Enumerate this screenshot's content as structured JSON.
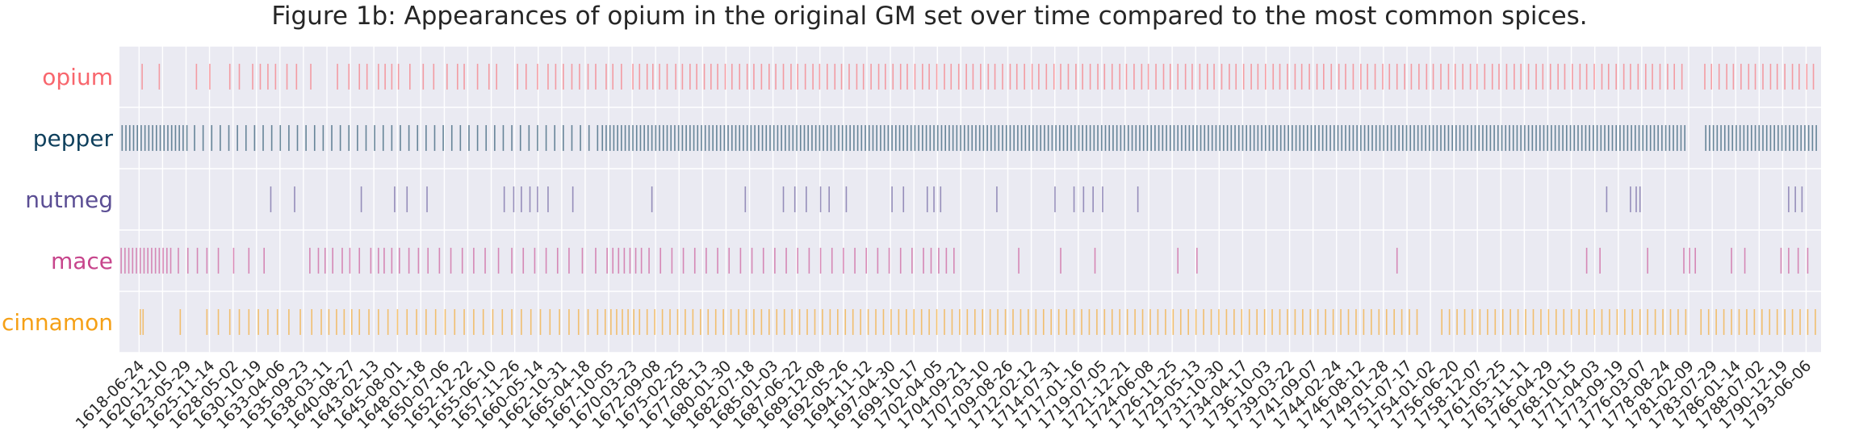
{
  "chart_data": {
    "type": "event-strip",
    "title": "Figure 1b: Appearances of opium in the original GM set over time compared to the most common spices.",
    "xlabel": "",
    "ylabel": "",
    "grid": true,
    "xlim": [
      "1616-06-01",
      "1794-12-31"
    ],
    "x_tick_labels": [
      "1618-06-24",
      "1620-12-10",
      "1623-05-29",
      "1625-11-14",
      "1628-05-02",
      "1630-10-19",
      "1633-04-06",
      "1635-09-23",
      "1638-03-11",
      "1640-08-27",
      "1643-02-13",
      "1645-08-01",
      "1648-01-18",
      "1650-07-06",
      "1652-12-22",
      "1655-06-10",
      "1657-11-26",
      "1660-05-14",
      "1662-10-31",
      "1665-04-18",
      "1667-10-05",
      "1670-03-23",
      "1672-09-08",
      "1675-02-25",
      "1677-08-13",
      "1680-01-30",
      "1682-07-18",
      "1685-01-03",
      "1687-06-22",
      "1689-12-08",
      "1692-05-26",
      "1694-11-12",
      "1697-04-30",
      "1699-10-17",
      "1702-04-05",
      "1704-09-21",
      "1707-03-10",
      "1709-08-26",
      "1712-02-12",
      "1714-07-31",
      "1717-01-16",
      "1719-07-05",
      "1721-12-21",
      "1724-06-08",
      "1726-11-25",
      "1729-05-13",
      "1731-10-30",
      "1734-04-17",
      "1736-10-03",
      "1739-03-22",
      "1741-09-07",
      "1744-02-24",
      "1746-08-12",
      "1749-01-28",
      "1751-07-17",
      "1754-01-02",
      "1756-06-20",
      "1758-12-07",
      "1761-05-25",
      "1763-11-11",
      "1766-04-29",
      "1768-10-15",
      "1771-04-03",
      "1773-09-19",
      "1776-03-07",
      "1778-08-24",
      "1781-02-09",
      "1783-07-29",
      "1786-01-14",
      "1788-07-02",
      "1790-12-19",
      "1793-06-06"
    ],
    "series": [
      {
        "name": "opium",
        "color": "#f8666d",
        "years": [
          1618.8,
          1620.6,
          1624.5,
          1625.9,
          1628.0,
          1629.0,
          1630.4,
          1631.2,
          1632.0,
          1632.8,
          1634.0,
          1635.0,
          1636.5,
          1639.3,
          1640.5,
          1641.6,
          1642.4,
          1643.6,
          1644.3,
          1645.0,
          1645.7,
          1646.9,
          1648.3,
          1649.4,
          1650.8,
          1651.9,
          1652.6,
          1654.0,
          1655.2,
          1656.0,
          1658.2,
          1659.1,
          1660.3,
          1661.4,
          1662.2,
          1663.0,
          1663.9,
          1664.7,
          1665.6,
          1666.4,
          1667.5,
          1668.2,
          1669.1,
          1670.3,
          1671.0,
          1671.8,
          1672.4,
          1673.1,
          1673.9,
          1674.8,
          1675.5,
          1676.3,
          1677.0,
          1677.8,
          1678.5,
          1679.2,
          1680.0,
          1680.7,
          1681.5,
          1682.3,
          1683.0,
          1683.8,
          1684.6,
          1685.3,
          1686.1,
          1686.9,
          1687.6,
          1688.4,
          1689.2,
          1689.9,
          1690.7,
          1691.5,
          1692.2,
          1693.0,
          1693.8,
          1694.5,
          1695.3,
          1696.1,
          1696.8,
          1697.6,
          1698.4,
          1699.1,
          1699.9,
          1700.7,
          1701.4,
          1702.2,
          1703.0,
          1703.7,
          1704.5,
          1705.3,
          1706.0,
          1706.8,
          1707.6,
          1708.3,
          1709.1,
          1709.9,
          1710.6,
          1711.4,
          1712.2,
          1712.9,
          1713.7,
          1714.5,
          1715.2,
          1716.0,
          1716.8,
          1717.5,
          1718.3,
          1719.1,
          1719.8,
          1720.6,
          1721.4,
          1722.1,
          1722.9,
          1723.7,
          1724.4,
          1725.2,
          1726.0,
          1726.7,
          1727.5,
          1728.3,
          1729.0,
          1729.8,
          1730.6,
          1731.3,
          1732.1,
          1732.9,
          1733.6,
          1734.4,
          1735.2,
          1735.9,
          1736.7,
          1737.5,
          1738.2,
          1739.0,
          1739.8,
          1740.5,
          1741.3,
          1742.1,
          1742.8,
          1743.6,
          1744.4,
          1745.1,
          1745.9,
          1746.7,
          1747.4,
          1748.2,
          1749.0,
          1749.7,
          1750.5,
          1751.3,
          1752.0,
          1752.8,
          1753.6,
          1754.3,
          1755.1,
          1755.9,
          1756.6,
          1757.4,
          1758.2,
          1758.9,
          1759.7,
          1760.5,
          1761.2,
          1762.0,
          1762.8,
          1763.5,
          1764.3,
          1765.1,
          1765.8,
          1766.6,
          1767.4,
          1768.1,
          1768.9,
          1769.7,
          1770.4,
          1771.2,
          1772.0,
          1772.7,
          1773.5,
          1774.3,
          1775.0,
          1775.8,
          1776.6,
          1777.3,
          1778.1,
          1778.9,
          1779.6,
          1780.4,
          1782.8,
          1783.5,
          1784.3,
          1785.1,
          1785.8,
          1786.6,
          1787.4,
          1788.1,
          1788.9,
          1789.7,
          1790.4,
          1791.2,
          1792.0,
          1792.7,
          1793.5,
          1794.2
        ]
      },
      {
        "name": "pepper",
        "color": "#0e3f5c",
        "years": [
          1616.7,
          1617.1,
          1617.5,
          1617.9,
          1618.3,
          1618.7,
          1619.1,
          1619.5,
          1619.9,
          1620.3,
          1620.7,
          1621.1,
          1621.5,
          1621.9,
          1622.3,
          1622.7,
          1623.1,
          1623.5,
          1624.3,
          1625.2,
          1626.1,
          1627.0,
          1627.9,
          1628.8,
          1629.7,
          1630.6,
          1631.5,
          1632.4,
          1633.3,
          1634.2,
          1635.1,
          1636.0,
          1636.9,
          1637.8,
          1638.7,
          1639.6,
          1640.5,
          1641.4,
          1642.3,
          1643.2,
          1644.1,
          1645.0,
          1645.9,
          1646.8,
          1647.7,
          1648.6,
          1649.5,
          1650.4,
          1651.3,
          1652.2,
          1653.1,
          1654.0,
          1654.9,
          1655.8,
          1656.7,
          1657.6,
          1658.5,
          1659.4,
          1660.3,
          1661.2,
          1662.1,
          1663.0,
          1663.9,
          1664.8,
          1665.7,
          1666.6,
          1667.1,
          1667.5,
          1667.9,
          1668.3,
          1668.7,
          1669.1,
          1669.5,
          1669.9,
          1670.3,
          1670.7,
          1671.1,
          1671.5,
          1671.9,
          1672.3,
          1672.7,
          1673.1,
          1673.5,
          1673.9,
          1674.3,
          1674.7,
          1675.1,
          1675.5,
          1675.9,
          1676.3,
          1676.7,
          1677.1,
          1677.5,
          1677.9,
          1678.3,
          1678.7,
          1679.1,
          1679.5,
          1679.9,
          1680.3,
          1680.7,
          1681.1,
          1681.5,
          1681.9,
          1682.3,
          1682.7,
          1683.1,
          1683.5,
          1683.9,
          1684.3,
          1684.7,
          1685.1,
          1685.5,
          1685.9,
          1686.3,
          1686.7,
          1687.1,
          1687.5,
          1687.9,
          1688.3,
          1688.7,
          1689.1,
          1689.5,
          1689.9,
          1690.3,
          1690.7,
          1691.1,
          1691.5,
          1691.9,
          1692.3,
          1692.7,
          1693.1,
          1693.5,
          1693.9,
          1694.3,
          1694.7,
          1695.1,
          1695.5,
          1695.9,
          1696.3,
          1696.7,
          1697.1,
          1697.5,
          1697.9,
          1698.3,
          1698.7,
          1699.1,
          1699.5,
          1699.9,
          1700.3,
          1700.7,
          1701.1,
          1701.5,
          1701.9,
          1702.3,
          1702.7,
          1703.1,
          1703.5,
          1703.9,
          1704.3,
          1704.7,
          1705.1,
          1705.5,
          1705.9,
          1706.3,
          1706.7,
          1707.1,
          1707.5,
          1707.9,
          1708.3,
          1708.7,
          1709.1,
          1709.5,
          1709.9,
          1710.3,
          1710.7,
          1711.1,
          1711.5,
          1711.9,
          1712.3,
          1712.7,
          1713.1,
          1713.5,
          1713.9,
          1714.3,
          1714.7,
          1715.1,
          1715.5,
          1715.9,
          1716.3,
          1716.7,
          1717.1,
          1717.5,
          1717.9,
          1718.3,
          1718.7,
          1719.1,
          1719.5,
          1719.9,
          1720.3,
          1720.7,
          1721.1,
          1721.5,
          1721.9,
          1722.3,
          1722.7,
          1723.1,
          1723.5,
          1723.9,
          1724.3,
          1724.7,
          1725.1,
          1725.5,
          1725.9,
          1726.3,
          1726.7,
          1727.1,
          1727.5,
          1727.9,
          1728.3,
          1728.7,
          1729.1,
          1729.5,
          1729.9,
          1730.3,
          1730.7,
          1731.1,
          1731.5,
          1731.9,
          1732.3,
          1732.7,
          1733.1,
          1733.5,
          1733.9,
          1734.3,
          1734.7,
          1735.1,
          1735.5,
          1735.9,
          1736.3,
          1736.7,
          1737.1,
          1737.5,
          1737.9,
          1738.3,
          1738.7,
          1739.1,
          1739.5,
          1739.9,
          1740.3,
          1740.7,
          1741.1,
          1741.5,
          1741.9,
          1742.3,
          1742.7,
          1743.1,
          1743.5,
          1743.9,
          1744.3,
          1744.7,
          1745.1,
          1745.5,
          1745.9,
          1746.3,
          1746.7,
          1747.1,
          1747.5,
          1747.9,
          1748.3,
          1748.7,
          1749.1,
          1749.5,
          1749.9,
          1750.3,
          1750.7,
          1751.1,
          1751.5,
          1751.9,
          1752.3,
          1752.7,
          1753.1,
          1753.5,
          1753.9,
          1754.3,
          1754.7,
          1755.1,
          1755.5,
          1755.9,
          1756.3,
          1756.7,
          1757.1,
          1757.5,
          1757.9,
          1758.3,
          1758.7,
          1759.1,
          1759.5,
          1759.9,
          1760.3,
          1760.7,
          1761.1,
          1761.5,
          1761.9,
          1762.3,
          1762.7,
          1763.1,
          1763.5,
          1763.9,
          1764.3,
          1764.7,
          1765.1,
          1765.5,
          1765.9,
          1766.3,
          1766.7,
          1767.1,
          1767.5,
          1767.9,
          1768.3,
          1768.7,
          1769.1,
          1769.5,
          1769.9,
          1770.3,
          1770.7,
          1771.1,
          1771.5,
          1771.9,
          1772.3,
          1772.7,
          1773.1,
          1773.5,
          1773.9,
          1774.3,
          1774.7,
          1775.1,
          1775.5,
          1775.9,
          1776.3,
          1776.7,
          1777.1,
          1777.5,
          1777.9,
          1778.3,
          1778.7,
          1779.1,
          1779.5,
          1779.9,
          1780.3,
          1780.7,
          1782.9,
          1783.3,
          1783.7,
          1784.1,
          1784.5,
          1784.9,
          1785.3,
          1785.7,
          1786.1,
          1786.5,
          1786.9,
          1787.3,
          1787.7,
          1788.1,
          1788.5,
          1788.9,
          1789.3,
          1789.7,
          1790.1,
          1790.5,
          1790.9,
          1791.3,
          1791.7,
          1792.1,
          1792.5,
          1792.9,
          1793.3,
          1793.7,
          1794.1,
          1794.5
        ]
      },
      {
        "name": "nutmeg",
        "color": "#5b4e94",
        "years": [
          1632.3,
          1634.8,
          1641.8,
          1645.3,
          1646.6,
          1648.7,
          1656.8,
          1657.8,
          1658.6,
          1659.5,
          1660.3,
          1661.4,
          1664.0,
          1672.3,
          1682.1,
          1686.1,
          1687.3,
          1688.5,
          1690.0,
          1690.9,
          1692.7,
          1697.5,
          1698.7,
          1701.2,
          1701.9,
          1702.6,
          1708.5,
          1714.6,
          1716.6,
          1717.6,
          1718.6,
          1719.6,
          1723.3,
          1772.5,
          1775.0,
          1775.6,
          1776.0,
          1791.6,
          1792.3,
          1793.0
        ]
      },
      {
        "name": "mace",
        "color": "#c7458c",
        "years": [
          1616.6,
          1617.0,
          1617.4,
          1617.8,
          1618.2,
          1618.6,
          1619.0,
          1619.4,
          1619.8,
          1620.2,
          1620.6,
          1621.0,
          1621.4,
          1621.8,
          1622.6,
          1623.6,
          1624.6,
          1625.6,
          1626.8,
          1628.4,
          1630.0,
          1631.6,
          1636.4,
          1637.3,
          1638.0,
          1638.8,
          1639.8,
          1640.6,
          1641.6,
          1642.8,
          1643.6,
          1644.2,
          1645.0,
          1645.8,
          1646.8,
          1647.8,
          1648.8,
          1650.0,
          1651.2,
          1652.4,
          1653.6,
          1654.8,
          1656.2,
          1657.6,
          1658.8,
          1660.0,
          1661.2,
          1662.4,
          1663.6,
          1665.0,
          1666.4,
          1667.6,
          1668.2,
          1668.8,
          1669.4,
          1670.0,
          1670.6,
          1671.2,
          1672.0,
          1673.2,
          1674.4,
          1675.6,
          1676.8,
          1678.0,
          1679.2,
          1680.4,
          1681.6,
          1682.8,
          1684.0,
          1685.2,
          1686.4,
          1687.6,
          1688.8,
          1690.0,
          1691.2,
          1692.4,
          1693.6,
          1694.8,
          1696.0,
          1697.2,
          1698.4,
          1699.6,
          1700.8,
          1701.6,
          1702.4,
          1703.2,
          1704.0,
          1710.8,
          1715.2,
          1718.8,
          1727.5,
          1729.5,
          1750.5,
          1770.4,
          1771.8,
          1776.8,
          1780.6,
          1781.2,
          1781.8,
          1785.6,
          1787.0,
          1790.8,
          1791.6,
          1792.6,
          1793.6
        ]
      },
      {
        "name": "cinnamon",
        "color": "#f5a016",
        "years": [
          1618.6,
          1618.9,
          1622.8,
          1625.6,
          1626.8,
          1628.0,
          1629.0,
          1630.0,
          1631.0,
          1632.0,
          1633.0,
          1634.2,
          1635.4,
          1636.6,
          1637.6,
          1638.4,
          1639.2,
          1640.0,
          1640.8,
          1641.6,
          1642.6,
          1643.6,
          1644.6,
          1645.6,
          1646.6,
          1647.6,
          1648.6,
          1649.6,
          1650.6,
          1651.6,
          1652.6,
          1653.6,
          1654.6,
          1655.6,
          1656.6,
          1657.6,
          1658.6,
          1659.6,
          1660.6,
          1661.6,
          1662.6,
          1663.6,
          1664.6,
          1665.6,
          1666.6,
          1667.4,
          1668.0,
          1668.6,
          1669.2,
          1669.8,
          1670.4,
          1671.0,
          1671.8,
          1672.6,
          1673.4,
          1674.2,
          1675.0,
          1675.8,
          1676.6,
          1677.4,
          1678.2,
          1679.0,
          1679.8,
          1680.6,
          1681.4,
          1682.2,
          1683.0,
          1683.8,
          1684.6,
          1685.4,
          1686.2,
          1687.0,
          1687.8,
          1688.6,
          1689.4,
          1690.2,
          1691.0,
          1691.8,
          1692.6,
          1693.4,
          1694.2,
          1695.0,
          1695.8,
          1696.6,
          1697.4,
          1698.2,
          1699.0,
          1699.8,
          1700.6,
          1701.4,
          1702.2,
          1703.0,
          1703.8,
          1704.6,
          1705.4,
          1706.2,
          1707.0,
          1707.8,
          1708.6,
          1709.4,
          1710.2,
          1711.0,
          1711.8,
          1712.6,
          1713.4,
          1714.2,
          1715.0,
          1715.8,
          1716.6,
          1717.4,
          1718.2,
          1719.0,
          1719.8,
          1720.6,
          1721.4,
          1722.2,
          1723.0,
          1723.8,
          1724.6,
          1725.4,
          1726.2,
          1727.0,
          1727.8,
          1728.6,
          1729.4,
          1730.2,
          1731.0,
          1731.8,
          1732.6,
          1733.4,
          1734.2,
          1735.0,
          1735.8,
          1736.6,
          1737.4,
          1738.2,
          1739.0,
          1739.8,
          1740.6,
          1741.4,
          1742.2,
          1743.0,
          1743.8,
          1744.6,
          1745.4,
          1746.2,
          1747.0,
          1747.8,
          1748.6,
          1749.4,
          1750.2,
          1751.0,
          1751.8,
          1752.6,
          1755.2,
          1756.0,
          1756.8,
          1757.6,
          1758.4,
          1759.2,
          1760.0,
          1760.8,
          1761.6,
          1762.4,
          1763.2,
          1764.0,
          1764.8,
          1765.6,
          1766.4,
          1767.2,
          1768.0,
          1768.8,
          1769.6,
          1770.4,
          1771.2,
          1772.0,
          1772.8,
          1773.6,
          1774.4,
          1775.2,
          1776.0,
          1776.8,
          1777.6,
          1778.4,
          1779.2,
          1780.0,
          1780.8,
          1782.4,
          1783.2,
          1784.0,
          1784.8,
          1785.6,
          1786.4,
          1787.2,
          1788.0,
          1788.8,
          1789.6,
          1790.4,
          1791.2,
          1792.0,
          1792.8,
          1793.6,
          1794.4
        ]
      }
    ]
  }
}
